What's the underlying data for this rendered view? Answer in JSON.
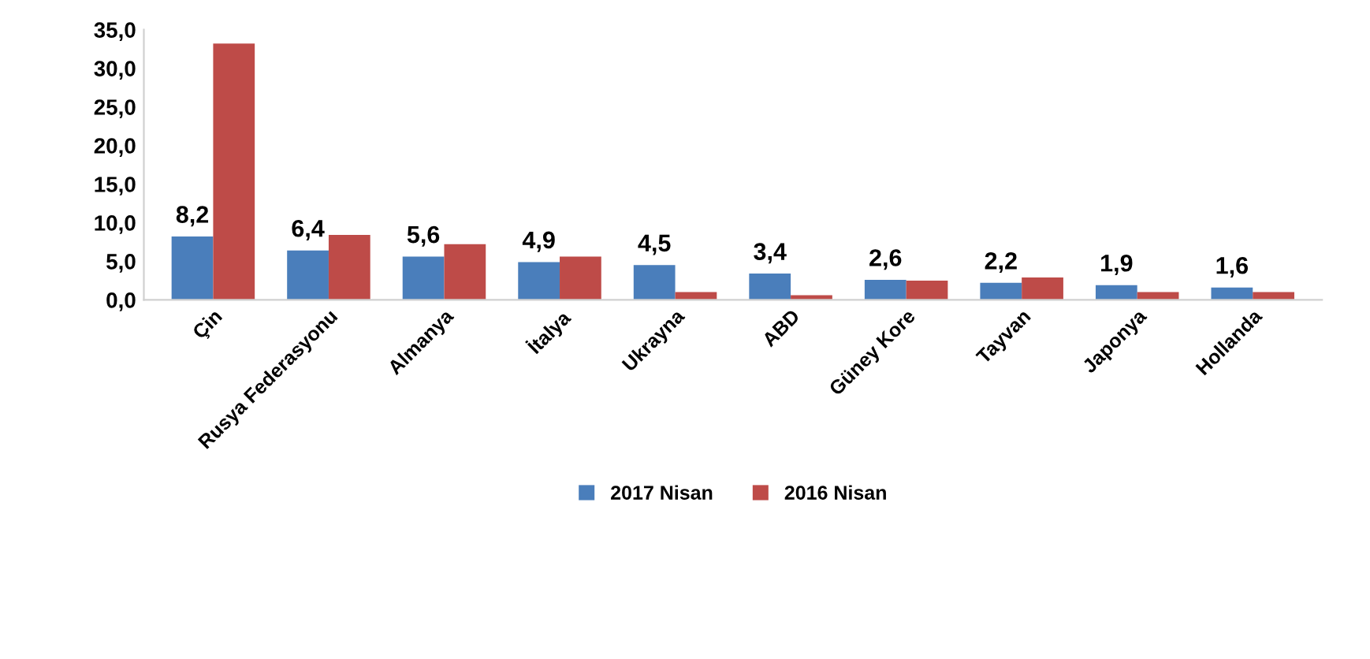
{
  "chart_data": {
    "type": "bar",
    "categories": [
      "Çin",
      "Rusya Federasyonu",
      "Almanya",
      "İtalya",
      "Ukrayna",
      "ABD",
      "Güney Kore",
      "Tayvan",
      "Japonya",
      "Hollanda"
    ],
    "series": [
      {
        "name": "2017 Nisan",
        "color": "#4a7ebb",
        "values": [
          8.2,
          6.4,
          5.6,
          4.9,
          4.5,
          3.4,
          2.6,
          2.2,
          1.9,
          1.6
        ],
        "value_labels": [
          "8,2",
          "6,4",
          "5,6",
          "4,9",
          "4,5",
          "3,4",
          "2,6",
          "2,2",
          "1,9",
          "1,6"
        ]
      },
      {
        "name": "2016 Nisan",
        "color": "#be4b48",
        "values": [
          33.2,
          8.4,
          7.2,
          5.6,
          1.0,
          0.6,
          2.5,
          2.9,
          1.0,
          1.0
        ]
      }
    ],
    "ylim": [
      0,
      35
    ],
    "yticks": [
      {
        "value": 0,
        "label": "0,0"
      },
      {
        "value": 5,
        "label": "5,0"
      },
      {
        "value": 10,
        "label": "10,0"
      },
      {
        "value": 15,
        "label": "15,0"
      },
      {
        "value": 20,
        "label": "20,0"
      },
      {
        "value": 25,
        "label": "25,0"
      },
      {
        "value": 30,
        "label": "30,0"
      },
      {
        "value": 35,
        "label": "35,0"
      }
    ],
    "grid": false,
    "legend": "bottom"
  }
}
